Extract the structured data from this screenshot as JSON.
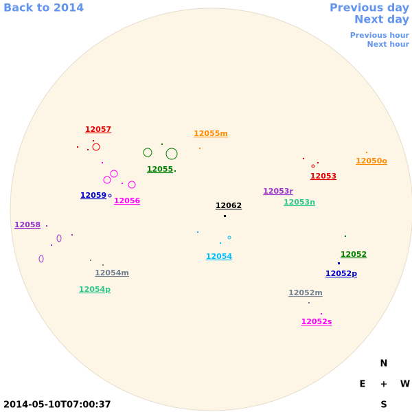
{
  "nav": {
    "back": "Back to 2014",
    "previous_day": "Previous day",
    "next_day": "Next day",
    "previous_hour": "Previous hour",
    "next_hour": "Next hour"
  },
  "regions": [
    {
      "label": "12057",
      "color": "#e00000"
    },
    {
      "label": "12055m",
      "color": "#ff8c00"
    },
    {
      "label": "12055",
      "color": "#008000"
    },
    {
      "label": "12050o",
      "color": "#ff8c00"
    },
    {
      "label": "12053",
      "color": "#e00000"
    },
    {
      "label": "12053r",
      "color": "#9932cc"
    },
    {
      "label": "12053n",
      "color": "#2fc88a"
    },
    {
      "label": "12059",
      "color": "#0000cc"
    },
    {
      "label": "12056",
      "color": "#ff00ff"
    },
    {
      "label": "12062",
      "color": "#000000"
    },
    {
      "label": "12058",
      "color": "#9932cc"
    },
    {
      "label": "12054",
      "color": "#00bfff"
    },
    {
      "label": "12052",
      "color": "#008000"
    },
    {
      "label": "12052p",
      "color": "#0000cc"
    },
    {
      "label": "12054m",
      "color": "#708090"
    },
    {
      "label": "12054p",
      "color": "#2fc88a"
    },
    {
      "label": "12052m",
      "color": "#708090"
    },
    {
      "label": "12052s",
      "color": "#ff00ff"
    }
  ],
  "timestamp": "2014-05-10T07:00:37",
  "compass": {
    "north": "N",
    "east": "E",
    "center": "+",
    "west": "W",
    "south": "S"
  }
}
